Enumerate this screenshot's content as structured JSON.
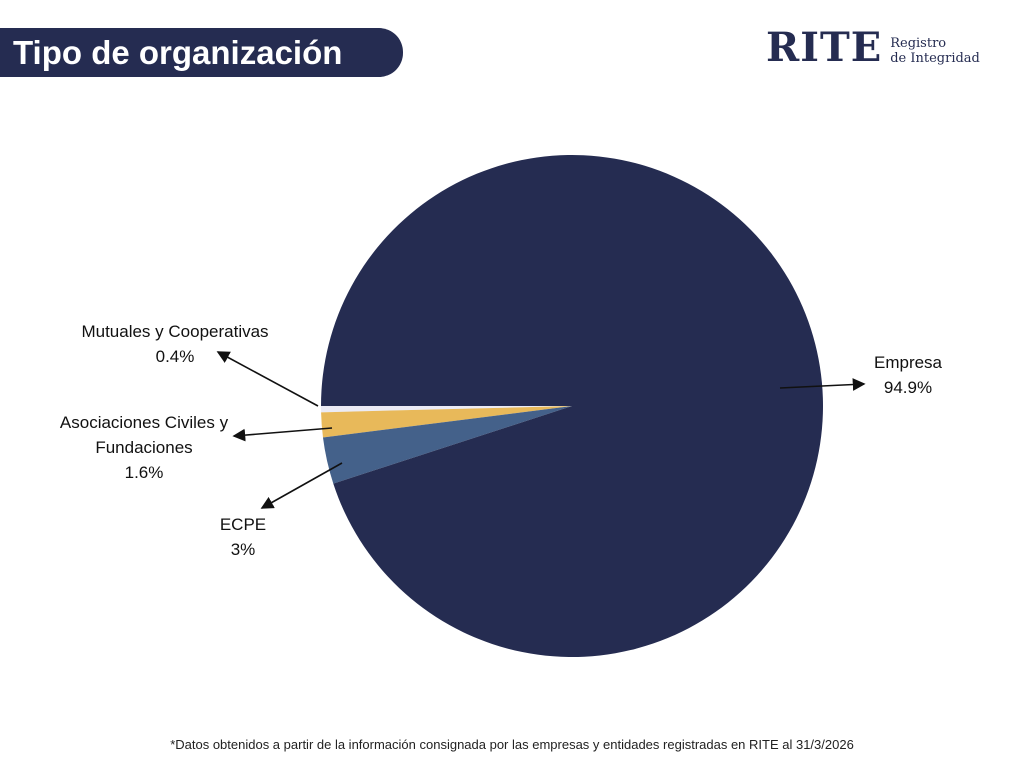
{
  "title": "Tipo de organización",
  "logo": {
    "main": "RITE",
    "sub1": "Registro",
    "sub2": "de Integridad"
  },
  "footnote": "*Datos obtenidos a partir de la información consignada por las empresas y entidades registradas en RITE al 31/3/2026",
  "chart_data": {
    "type": "pie",
    "title": "Tipo de organización",
    "slices": [
      {
        "name": "Mutuales y Cooperativas",
        "value": 0.4,
        "label": "0.4%",
        "color": "#ebebf5"
      },
      {
        "name": "Asociaciones Civiles y Fundaciones",
        "value": 1.6,
        "label": "1.6%",
        "color": "#e8b95a"
      },
      {
        "name": "ECPE",
        "value": 3,
        "label": "3%",
        "color": "#44618a"
      },
      {
        "name": "Empresa",
        "value": 94.9,
        "label": "94.9%",
        "color": "#252c51"
      }
    ]
  }
}
